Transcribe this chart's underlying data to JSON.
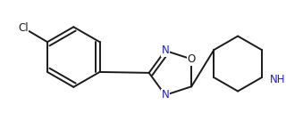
{
  "background_color": "#ffffff",
  "line_color": "#1a1a1a",
  "N_color": "#2020bb",
  "line_width": 1.4,
  "font_size": 8.5,
  "figsize": [
    3.39,
    1.45
  ],
  "dpi": 100,
  "xlim": [
    -1.95,
    1.65
  ],
  "ylim": [
    -0.62,
    0.72
  ]
}
